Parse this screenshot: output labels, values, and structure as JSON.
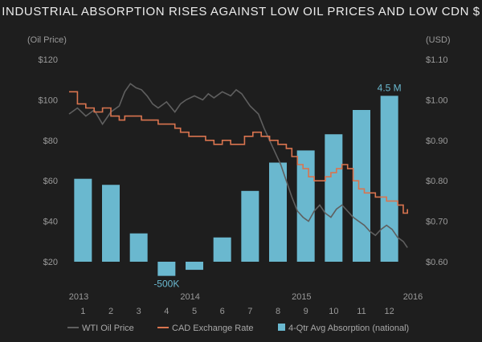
{
  "chart_data": {
    "title": "INDUSTRIAL ABSORPTION RISES AGAINST LOW OIL PRICES AND LOW CDN $",
    "type": "bar+line",
    "left_axis": {
      "label": "(Oil Price)",
      "ticks": [
        "$120",
        "$100",
        "$80",
        "$60",
        "$40",
        "$20"
      ],
      "tick_values": [
        120,
        100,
        80,
        60,
        40,
        20
      ],
      "range": [
        20,
        120
      ]
    },
    "right_axis": {
      "label": "(USD)",
      "ticks": [
        "$1.10",
        "$1.00",
        "$0.90",
        "$0.80",
        "$0.70",
        "$0.60"
      ],
      "tick_values": [
        1.1,
        1.0,
        0.9,
        0.8,
        0.7,
        0.6
      ],
      "range": [
        0.6,
        1.1
      ]
    },
    "year_labels": [
      {
        "label": "2013",
        "t": 0.0
      },
      {
        "label": "2014",
        "t": 4.0
      },
      {
        "label": "2015",
        "t": 8.0
      },
      {
        "label": "2016",
        "t": 12.0
      }
    ],
    "quarter_labels": [
      "1",
      "2",
      "3",
      "4",
      "5",
      "6",
      "7",
      "8",
      "9",
      "10",
      "11",
      "12"
    ],
    "bar_values_oil_scale": [
      61,
      58,
      34,
      13,
      16,
      32,
      55,
      69,
      75,
      83,
      95,
      102
    ],
    "bar_annotations": [
      {
        "index": 11,
        "text": "4.5 M"
      },
      {
        "index": 3,
        "text": "-500K"
      }
    ],
    "series": [
      {
        "name": "WTI Oil Price",
        "color": "#5f5f5f",
        "t": [
          0.0,
          0.3,
          0.6,
          0.9,
          1.2,
          1.5,
          1.8,
          2.0,
          2.2,
          2.4,
          2.6,
          2.8,
          3.0,
          3.2,
          3.5,
          3.8,
          4.0,
          4.2,
          4.5,
          4.8,
          5.0,
          5.2,
          5.5,
          5.8,
          6.0,
          6.2,
          6.5,
          6.8,
          7.0,
          7.2,
          7.4,
          7.6,
          7.8,
          8.0,
          8.2,
          8.4,
          8.6,
          8.8,
          9.0,
          9.2,
          9.4,
          9.6,
          9.8,
          10.0,
          10.2,
          10.4,
          10.6,
          10.8,
          11.0,
          11.2,
          11.4,
          11.6,
          11.8,
          12.0,
          12.15
        ],
        "values": [
          93,
          96,
          92,
          95,
          88,
          94,
          97,
          104,
          108,
          106,
          105,
          102,
          98,
          96,
          99,
          94,
          98,
          100,
          102,
          100,
          103,
          101,
          104,
          102,
          105,
          103,
          97,
          93,
          86,
          80,
          74,
          68,
          60,
          52,
          45,
          42,
          40,
          45,
          48,
          44,
          42,
          46,
          48,
          45,
          42,
          40,
          38,
          35,
          33,
          36,
          38,
          36,
          32,
          30,
          27
        ]
      },
      {
        "name": "CAD Exchange Rate",
        "color": "#d9744f",
        "t": [
          0.0,
          0.3,
          0.6,
          0.9,
          1.2,
          1.5,
          1.8,
          2.0,
          2.3,
          2.6,
          2.9,
          3.2,
          3.5,
          3.8,
          4.0,
          4.3,
          4.6,
          4.9,
          5.2,
          5.5,
          5.8,
          6.0,
          6.3,
          6.6,
          6.9,
          7.2,
          7.5,
          7.8,
          8.0,
          8.2,
          8.4,
          8.6,
          8.8,
          9.0,
          9.2,
          9.4,
          9.6,
          9.8,
          10.0,
          10.2,
          10.4,
          10.6,
          10.8,
          11.0,
          11.2,
          11.4,
          11.6,
          11.8,
          12.0,
          12.15
        ],
        "values": [
          1.02,
          0.99,
          0.98,
          0.97,
          0.98,
          0.96,
          0.95,
          0.96,
          0.96,
          0.95,
          0.95,
          0.94,
          0.94,
          0.93,
          0.92,
          0.91,
          0.91,
          0.9,
          0.89,
          0.9,
          0.89,
          0.89,
          0.91,
          0.92,
          0.91,
          0.9,
          0.89,
          0.88,
          0.86,
          0.84,
          0.83,
          0.81,
          0.8,
          0.8,
          0.81,
          0.82,
          0.83,
          0.84,
          0.83,
          0.8,
          0.78,
          0.77,
          0.77,
          0.76,
          0.76,
          0.75,
          0.75,
          0.74,
          0.72,
          0.73
        ]
      },
      {
        "name": "4-Qtr Avg Absorption (national)",
        "color": "#6ab8cf"
      }
    ]
  }
}
